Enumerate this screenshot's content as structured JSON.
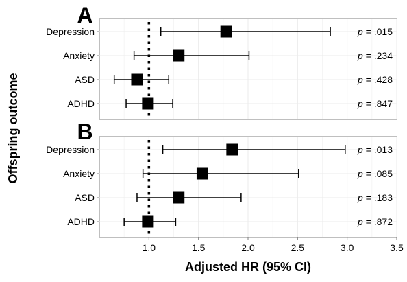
{
  "chart_data": {
    "type": "forest",
    "xlabel": "Adjusted HR (95% CI)",
    "ylabel": "Offspring outcome",
    "xlim": [
      0.5,
      3.5
    ],
    "xticks": [
      "1.0",
      "1.5",
      "2.0",
      "2.5",
      "3.0",
      "3.5"
    ],
    "reference_line": 1.0,
    "grid": true,
    "panels": [
      {
        "label": "A",
        "rows": [
          {
            "outcome": "Depression",
            "hr": 1.78,
            "ci": [
              1.12,
              2.83
            ],
            "p_prefix": "p",
            "p_text": "= .015"
          },
          {
            "outcome": "Anxiety",
            "hr": 1.3,
            "ci": [
              0.85,
              2.01
            ],
            "p_prefix": "p",
            "p_text": "= .234"
          },
          {
            "outcome": "ASD",
            "hr": 0.88,
            "ci": [
              0.65,
              1.2
            ],
            "p_prefix": "p",
            "p_text": "= .428"
          },
          {
            "outcome": "ADHD",
            "hr": 0.99,
            "ci": [
              0.77,
              1.24
            ],
            "p_prefix": "p",
            "p_text": "= .847"
          }
        ]
      },
      {
        "label": "B",
        "rows": [
          {
            "outcome": "Depression",
            "hr": 1.84,
            "ci": [
              1.14,
              2.98
            ],
            "p_prefix": "p",
            "p_text": "= .013"
          },
          {
            "outcome": "Anxiety",
            "hr": 1.54,
            "ci": [
              0.94,
              2.51
            ],
            "p_prefix": "p",
            "p_text": "= .085"
          },
          {
            "outcome": "ASD",
            "hr": 1.3,
            "ci": [
              0.88,
              1.93
            ],
            "p_prefix": "p",
            "p_text": "= .183"
          },
          {
            "outcome": "ADHD",
            "hr": 0.99,
            "ci": [
              0.75,
              1.27
            ],
            "p_prefix": "p",
            "p_text": "= .872"
          }
        ]
      }
    ]
  }
}
